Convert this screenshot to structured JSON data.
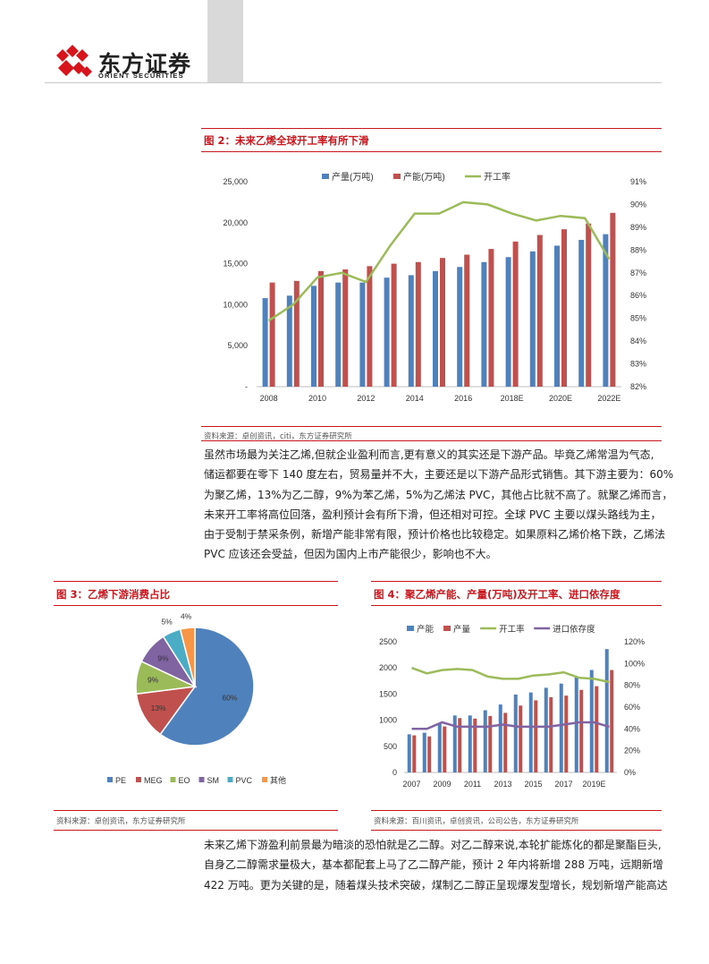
{
  "header": {
    "logo_cn": "东方证券",
    "logo_en": "ORIENT  SECURITIES"
  },
  "fig2": {
    "title": "图 2：未来乙烯全球开工率有所下滑",
    "source": "资料来源：卓创资讯，citi，东方证券研究所"
  },
  "para1": [
    "虽然市场最为关注乙烯,但就企业盈利而言,更有意义的其实还是下游产品。毕竟乙烯常温为气态,",
    "储运都要在零下 140 度左右，贸易量并不大，主要还是以下游产品形式销售。其下游主要为：60%",
    "为聚乙烯，13%为乙二醇，9%为苯乙烯，5%为乙烯法 PVC，其他占比就不高了。就聚乙烯而言，",
    "未来开工率将高位回落，盈利预计会有所下滑，但还相对可控。全球 PVC 主要以煤头路线为主，",
    "由于受制于禁采条例，新增产能非常有限，预计价格也比较稳定。如果原料乙烯价格下跌，乙烯法",
    "PVC 应该还会受益，但因为国内上市产能很少，影响也不大。"
  ],
  "fig3": {
    "title": "图 3：乙烯下游消费占比",
    "source": "资料来源：卓创资讯，东方证券研究所"
  },
  "fig4": {
    "title": "图 4：聚乙烯产能、产量(万吨)及开工率、进口依存度",
    "source": "资料来源：百川资讯，卓创资讯，公司公告，东方证券研究所"
  },
  "para2": [
    "未来乙烯下游盈利前景最为暗淡的恐怕就是乙二醇。对乙二醇来说,本轮扩能炼化的都是聚酯巨头,",
    "自身乙二醇需求量极大，基本都配套上马了乙二醇产能，预计 2 年内将新增 288 万吨，远期新增",
    "422 万吨。更为关键的是，随着煤头技术突破，煤制乙二醇正呈现爆发型增长，规划新增产能高达"
  ],
  "colors": {
    "blue": "#4f81bd",
    "red": "#c0504d",
    "green": "#9bbb59",
    "purple": "#8064a2",
    "cyan": "#4bacc6",
    "orange": "#f79646",
    "brand_red": "#c8161d"
  },
  "chart_data": [
    {
      "id": "fig2",
      "type": "bar",
      "categories": [
        "2008",
        "2009",
        "2010",
        "2011",
        "2012",
        "2013",
        "2014",
        "2015",
        "2016",
        "2017",
        "2018E",
        "2019E",
        "2020E",
        "2021E",
        "2022E"
      ],
      "x_tick_labels": [
        "2008",
        "2010",
        "2012",
        "2014",
        "2016",
        "2018E",
        "2020E",
        "2022E"
      ],
      "series": [
        {
          "name": "产量(万吨)",
          "kind": "bar",
          "axis": "left",
          "color": "#4f81bd",
          "values": [
            10800,
            11100,
            12300,
            12700,
            12700,
            13300,
            13600,
            14100,
            14600,
            15200,
            15800,
            16500,
            17200,
            17900,
            18600
          ]
        },
        {
          "name": "产能(万吨)",
          "kind": "bar",
          "axis": "left",
          "color": "#c0504d",
          "values": [
            12700,
            12900,
            14100,
            14300,
            14700,
            15000,
            15200,
            15700,
            16100,
            16800,
            17700,
            18500,
            19200,
            19900,
            21200
          ]
        },
        {
          "name": "开工率",
          "kind": "line",
          "axis": "right",
          "color": "#9bbb59",
          "values": [
            0.849,
            0.856,
            0.868,
            0.87,
            0.866,
            0.882,
            0.896,
            0.896,
            0.901,
            0.9,
            0.896,
            0.893,
            0.895,
            0.894,
            0.876
          ]
        }
      ],
      "left_axis": {
        "ticks": [
          "-",
          "5,000",
          "10,000",
          "15,000",
          "20,000",
          "25,000"
        ],
        "range": [
          0,
          25000
        ]
      },
      "right_axis": {
        "ticks": [
          "82%",
          "83%",
          "84%",
          "85%",
          "86%",
          "87%",
          "88%",
          "89%",
          "90%",
          "91%"
        ],
        "range": [
          0.82,
          0.91
        ]
      },
      "grid": false,
      "legend": "top-center"
    },
    {
      "id": "fig3",
      "type": "pie",
      "labels": [
        "PE",
        "MEG",
        "EO",
        "SM",
        "PVC",
        "其他"
      ],
      "values": [
        0.6,
        0.13,
        0.09,
        0.09,
        0.05,
        0.04
      ],
      "data_labels": [
        "60%",
        "13%",
        "9%",
        "9%",
        "5%",
        "4%"
      ],
      "colors": [
        "#4f81bd",
        "#c0504d",
        "#9bbb59",
        "#8064a2",
        "#4bacc6",
        "#f79646"
      ],
      "legend": "bottom"
    },
    {
      "id": "fig4",
      "type": "bar",
      "categories": [
        "2007",
        "2008",
        "2009",
        "2010",
        "2011",
        "2012",
        "2013",
        "2014",
        "2015",
        "2016",
        "2017",
        "2018",
        "2019E",
        "2020E"
      ],
      "x_tick_labels": [
        "2007",
        "2009",
        "2011",
        "2013",
        "2015",
        "2017",
        "2019E"
      ],
      "series": [
        {
          "name": "产能",
          "kind": "bar",
          "axis": "left",
          "color": "#4f81bd",
          "values": [
            730,
            760,
            950,
            1090,
            1090,
            1190,
            1300,
            1490,
            1530,
            1620,
            1700,
            1820,
            1960,
            2360
          ]
        },
        {
          "name": "产量",
          "kind": "bar",
          "axis": "left",
          "color": "#c0504d",
          "values": [
            710,
            690,
            880,
            1040,
            1030,
            1080,
            1140,
            1280,
            1380,
            1440,
            1470,
            1580,
            1650,
            1960
          ]
        },
        {
          "name": "开工率",
          "kind": "line",
          "axis": "right",
          "color": "#9bbb59",
          "values": [
            0.96,
            0.91,
            0.94,
            0.95,
            0.94,
            0.88,
            0.86,
            0.86,
            0.89,
            0.9,
            0.92,
            0.87,
            0.86,
            0.83
          ]
        },
        {
          "name": "进口依存度",
          "kind": "line",
          "axis": "right",
          "color": "#8064a2",
          "values": [
            0.4,
            0.4,
            0.46,
            0.42,
            0.42,
            0.42,
            0.44,
            0.42,
            0.42,
            0.42,
            0.44,
            0.46,
            0.46,
            0.42
          ]
        }
      ],
      "left_axis": {
        "ticks": [
          "0",
          "500",
          "1000",
          "1500",
          "2000",
          "2500"
        ],
        "range": [
          0,
          2500
        ]
      },
      "right_axis": {
        "ticks": [
          "0%",
          "20%",
          "40%",
          "60%",
          "80%",
          "100%",
          "120%"
        ],
        "range": [
          0,
          1.2
        ]
      },
      "grid": false,
      "legend": "top"
    }
  ]
}
